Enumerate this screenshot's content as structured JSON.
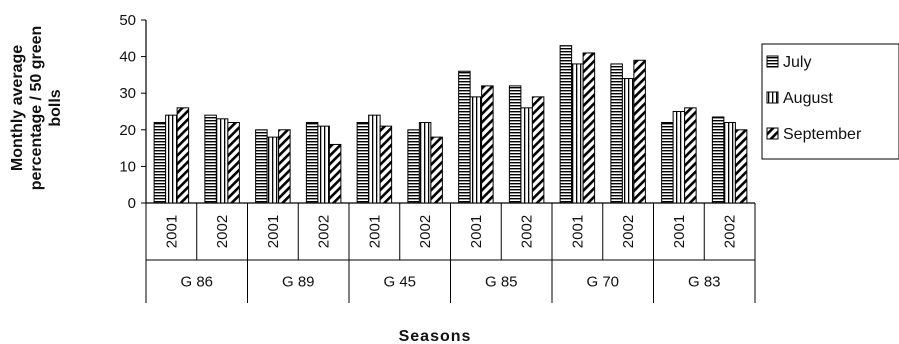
{
  "chart_data": {
    "type": "bar",
    "title": "",
    "xlabel": "Seasons",
    "ylabel_lines": [
      "Monthly average",
      "percentage / 50 green",
      "bolls"
    ],
    "ylim": [
      0,
      50
    ],
    "yticks": [
      0,
      10,
      20,
      30,
      40,
      50
    ],
    "groups": [
      {
        "name": "G 86",
        "years": [
          "2001",
          "2002"
        ]
      },
      {
        "name": "G 89",
        "years": [
          "2001",
          "2002"
        ]
      },
      {
        "name": "G 45",
        "years": [
          "2001",
          "2002"
        ]
      },
      {
        "name": "G 85",
        "years": [
          "2001",
          "2002"
        ]
      },
      {
        "name": "G 70",
        "years": [
          "2001",
          "2002"
        ]
      },
      {
        "name": "G 83",
        "years": [
          "2001",
          "2002"
        ]
      }
    ],
    "series": [
      {
        "name": "July",
        "pattern": "horizontal",
        "values": [
          22,
          24,
          20,
          22,
          22,
          20,
          36,
          32,
          43,
          38,
          22,
          23.5
        ]
      },
      {
        "name": "August",
        "pattern": "vertical",
        "values": [
          24,
          23,
          18,
          21,
          24,
          22,
          29,
          26,
          38,
          34,
          25,
          22
        ]
      },
      {
        "name": "September",
        "pattern": "diagonal",
        "values": [
          26,
          22,
          20,
          16,
          21,
          18,
          32,
          29,
          41,
          39,
          26,
          20
        ]
      }
    ],
    "legend_position": "right",
    "grid": false,
    "colors": {
      "bar_stroke": "#000000",
      "pattern": "#000000",
      "background": "#ffffff"
    }
  }
}
